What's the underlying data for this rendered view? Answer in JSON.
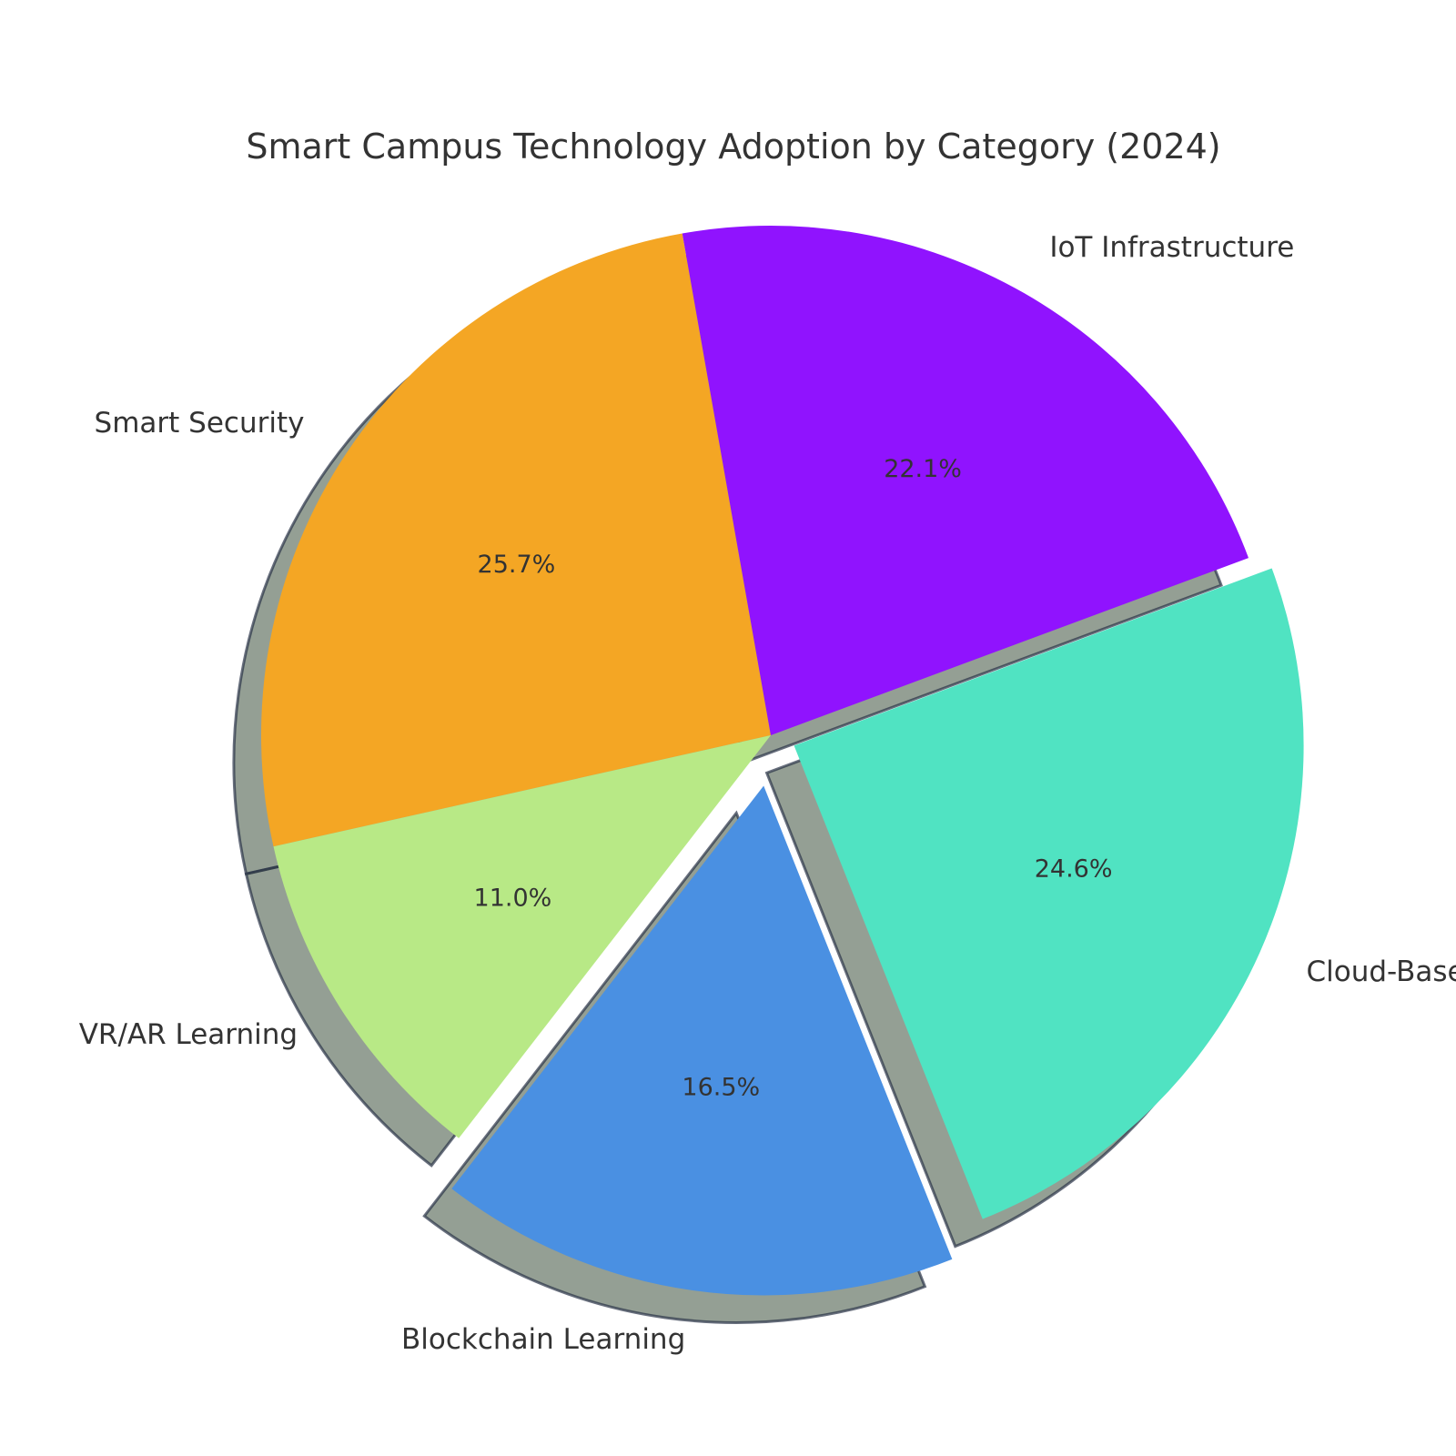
{
  "chart_data": {
    "type": "pie",
    "title": "Smart Campus Technology Adoption by Category (2024)",
    "start_angle_deg": 100,
    "direction": "counterclockwise",
    "shadow": true,
    "slices": [
      {
        "label": "Smart Security",
        "value": 25.7,
        "pct_label": "25.7%",
        "color": "#F4A624",
        "explode": 0
      },
      {
        "label": "VR/AR Learning",
        "value": 11.0,
        "pct_label": "11.0%",
        "color": "#B8E986",
        "explode": 0
      },
      {
        "label": "Blockchain Learning",
        "value": 16.5,
        "pct_label": "16.5%",
        "color": "#4A90E2",
        "explode": 0.1
      },
      {
        "label": "Cloud-Based Admin Tools",
        "value": 24.6,
        "pct_label": "24.6%",
        "color": "#50E3C2",
        "explode": 0.05
      },
      {
        "label": "IoT Infrastructure",
        "value": 22.1,
        "pct_label": "22.1%",
        "color": "#9013FE",
        "explode": 0
      }
    ]
  }
}
